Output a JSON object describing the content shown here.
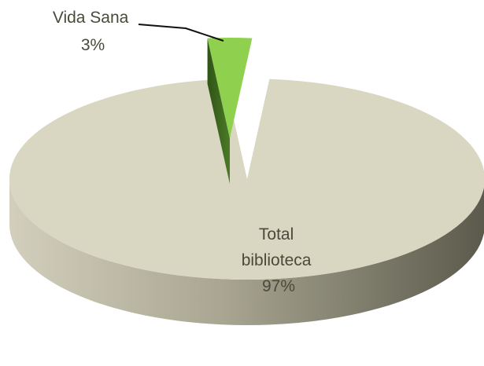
{
  "chart_data": {
    "type": "pie",
    "title": "",
    "categories": [
      "Vida Sana",
      "Total biblioteca"
    ],
    "values": [
      3,
      97
    ],
    "labels": [
      {
        "lines": [
          "Vida Sana",
          "3%"
        ]
      },
      {
        "lines": [
          "Total",
          "biblioteca",
          "97%"
        ]
      }
    ],
    "colors": [
      "#8fd14f",
      "#d9d6c2"
    ],
    "side_colors": [
      "#3d6b1e",
      "#8a8774"
    ],
    "exploded_slice": "Vida Sana",
    "style": "3d"
  }
}
